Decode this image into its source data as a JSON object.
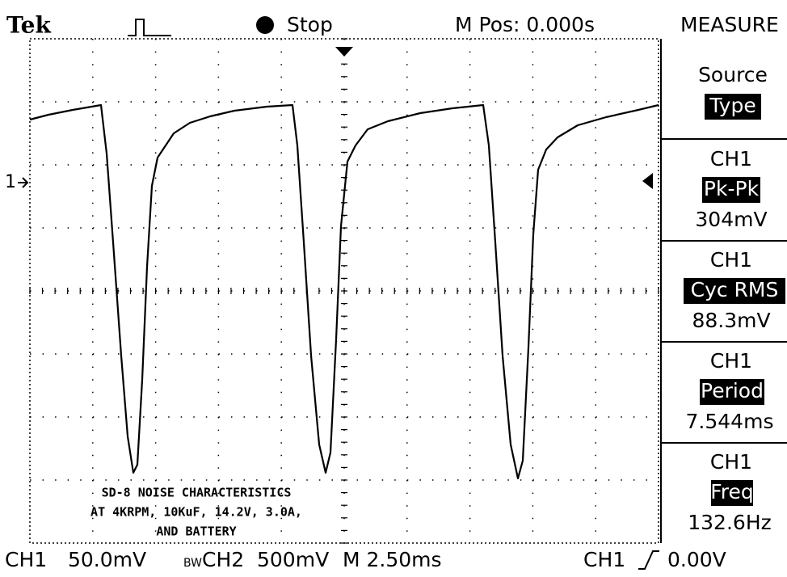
{
  "header": {
    "brand": "Tek",
    "status": "Stop",
    "position": "M Pos: 0.000s",
    "menu_title": "MEASURE"
  },
  "menu": [
    {
      "label": "Source",
      "value": "Type"
    },
    {
      "channel": "CH1",
      "label": "Pk-Pk",
      "value": "304mV"
    },
    {
      "channel": "CH1",
      "label": "Cyc RMS",
      "value": "88.3mV"
    },
    {
      "channel": "CH1",
      "label": "Period",
      "value": "7.544ms"
    },
    {
      "channel": "CH1",
      "label": "Freq",
      "value": "132.6Hz"
    }
  ],
  "annotation": [
    "SD-8 NOISE CHARACTERISTICS",
    "AT 4KRPM, 10KuF, 14.2V, 3.0A,",
    "AND BATTERY"
  ],
  "marker": "1",
  "footer": {
    "ch1": "CH1",
    "ch1_scale": "50.0mV",
    "bw": "BW",
    "ch2": "CH2",
    "ch2_scale": "500mV",
    "timebase": "M 2.50ms",
    "trigger_source": "CH1",
    "trigger_level": "0.00V"
  }
}
